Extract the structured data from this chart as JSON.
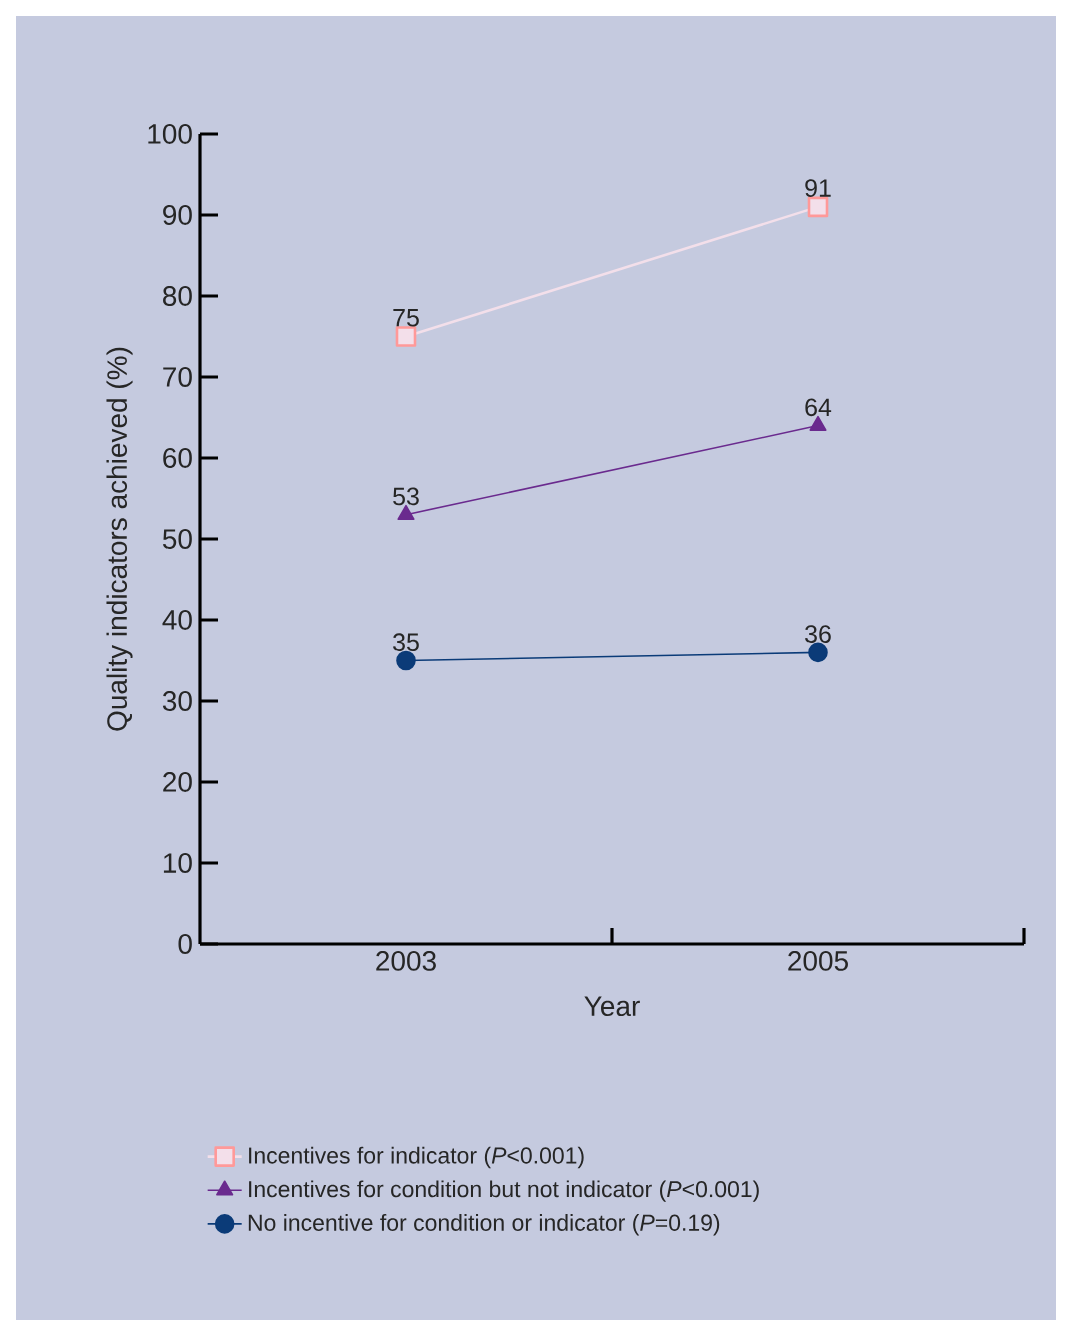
{
  "chart_data": {
    "type": "line",
    "xlabel": "Year",
    "ylabel": "Quality indicators achieved (%)",
    "categories": [
      "2003",
      "2005"
    ],
    "series": [
      {
        "name": "Incentives for indicator (*P*<0.001)",
        "color": "#f3dfea",
        "marker": "square",
        "values": [
          75,
          91
        ]
      },
      {
        "name": "Incentives for condition but not indicator (*P*<0.001)",
        "color": "#6a2a8e",
        "marker": "triangle",
        "values": [
          53,
          64
        ]
      },
      {
        "name": "No incentive for condition or indicator (*P*=0.19)",
        "color": "#0b3b78",
        "marker": "circle",
        "values": [
          35,
          36
        ]
      }
    ],
    "ylim": [
      0,
      100
    ],
    "yticks": [
      0,
      10,
      20,
      30,
      40,
      50,
      60,
      70,
      80,
      90,
      100
    ],
    "data_labels": true,
    "grid": false,
    "legend": "bottom",
    "line_style": "solid"
  }
}
